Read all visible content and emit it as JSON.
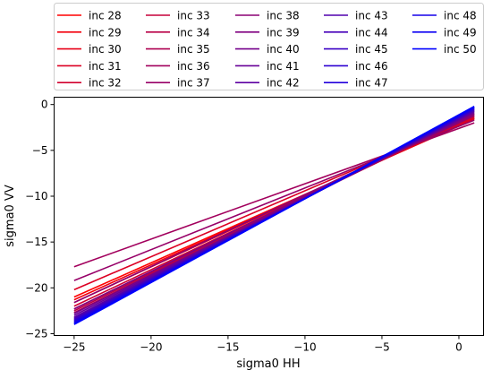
{
  "chart_data": {
    "type": "line",
    "xlabel": "sigma0 HH",
    "ylabel": "sigma0 VV",
    "xlim": [
      -26.3,
      1.6
    ],
    "ylim": [
      -25.2,
      0.8
    ],
    "xticks": [
      -25,
      -20,
      -15,
      -10,
      -5,
      0
    ],
    "yticks": [
      0,
      -5,
      -10,
      -15,
      -20,
      -25
    ],
    "x_range": [
      -25,
      1
    ],
    "grid": false,
    "legend_position": "top",
    "legend_columns": 5,
    "color_start": "#ff0000",
    "color_end": "#0000ff",
    "series": [
      {
        "name": "inc 28",
        "values": [
          -21.0,
          -1.6
        ]
      },
      {
        "name": "inc 29",
        "values": [
          -21.3,
          -1.5
        ]
      },
      {
        "name": "inc 30",
        "values": [
          -21.6,
          -1.4
        ]
      },
      {
        "name": "inc 31",
        "values": [
          -20.2,
          -1.5
        ]
      },
      {
        "name": "inc 32",
        "values": [
          -22.0,
          -1.3
        ]
      },
      {
        "name": "inc 33",
        "values": [
          -22.3,
          -1.2
        ]
      },
      {
        "name": "inc 34",
        "values": [
          -22.5,
          -1.1
        ]
      },
      {
        "name": "inc 35",
        "values": [
          -22.7,
          -1.0
        ]
      },
      {
        "name": "inc 36",
        "values": [
          -17.7,
          -2.0
        ]
      },
      {
        "name": "inc 37",
        "values": [
          -19.2,
          -1.7
        ]
      },
      {
        "name": "inc 38",
        "values": [
          -21.6,
          -1.2
        ]
      },
      {
        "name": "inc 39",
        "values": [
          -22.3,
          -1.0
        ]
      },
      {
        "name": "inc 40",
        "values": [
          -22.8,
          -0.9
        ]
      },
      {
        "name": "inc 41",
        "values": [
          -23.0,
          -0.8
        ]
      },
      {
        "name": "inc 42",
        "values": [
          -23.2,
          -0.7
        ]
      },
      {
        "name": "inc 43",
        "values": [
          -23.3,
          -0.7
        ]
      },
      {
        "name": "inc 44",
        "values": [
          -23.4,
          -0.6
        ]
      },
      {
        "name": "inc 45",
        "values": [
          -23.5,
          -0.5
        ]
      },
      {
        "name": "inc 46",
        "values": [
          -23.6,
          -0.5
        ]
      },
      {
        "name": "inc 47",
        "values": [
          -23.7,
          -0.4
        ]
      },
      {
        "name": "inc 48",
        "values": [
          -23.8,
          -0.3
        ]
      },
      {
        "name": "inc 49",
        "values": [
          -23.9,
          -0.3
        ]
      },
      {
        "name": "inc 50",
        "values": [
          -24.0,
          -0.2
        ]
      }
    ]
  }
}
